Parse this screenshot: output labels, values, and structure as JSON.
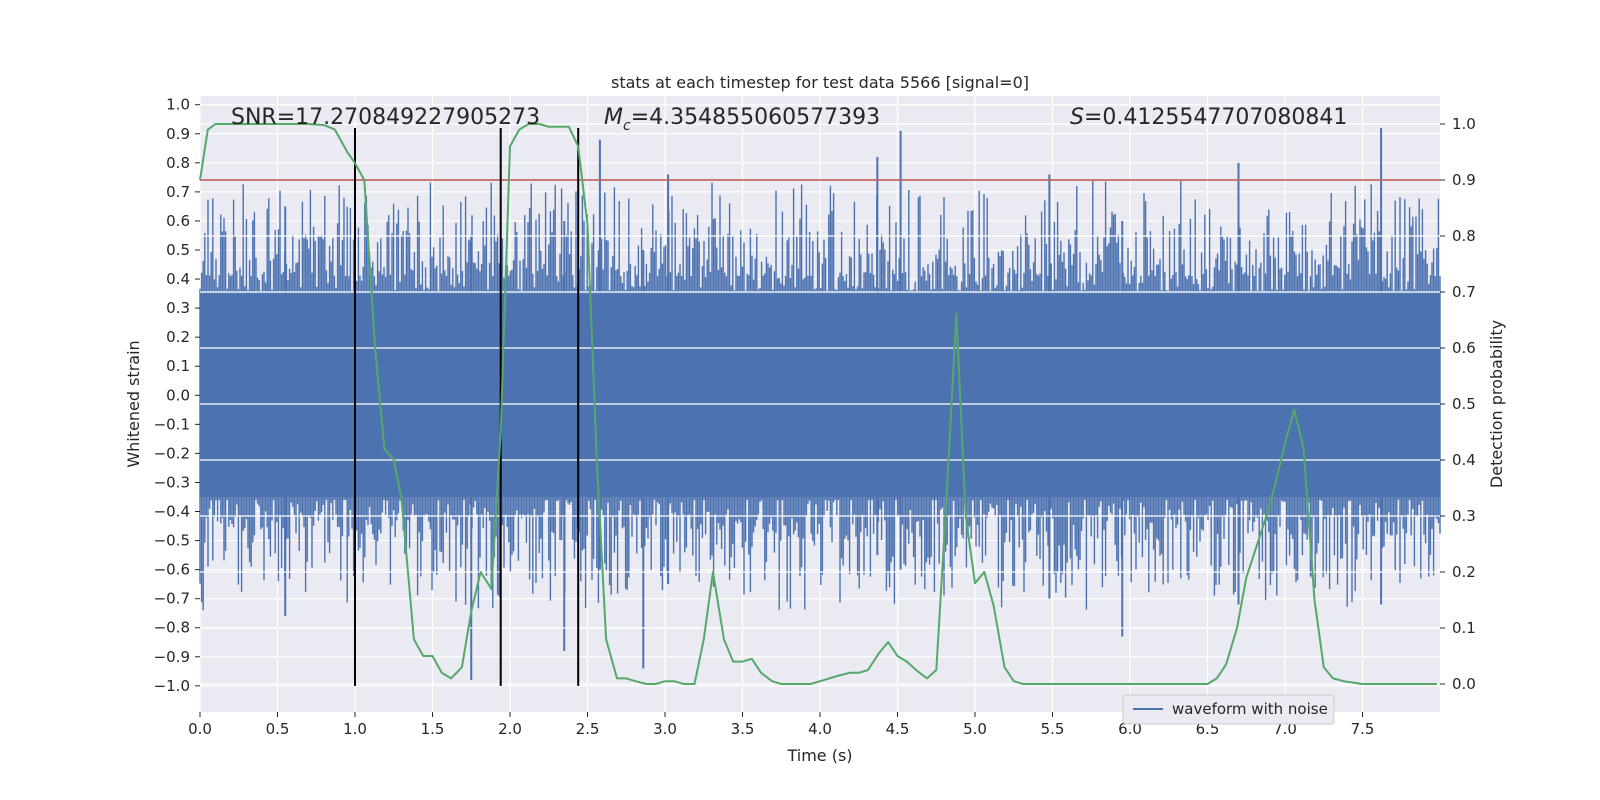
{
  "chart_data": {
    "type": "line",
    "title": "stats at each timestep for test data 5566 [signal=0]",
    "xlabel": "Time (s)",
    "ylabel_left": "Whitened strain",
    "ylabel_right": "Detection probability",
    "xlim": [
      0.0,
      8.0
    ],
    "ylim_left": [
      -1.09,
      1.03
    ],
    "ylim_right": [
      -0.05,
      1.05
    ],
    "x_ticks": [
      "0.0",
      "0.5",
      "1.0",
      "1.5",
      "2.0",
      "2.5",
      "3.0",
      "3.5",
      "4.0",
      "4.5",
      "5.0",
      "5.5",
      "6.0",
      "6.5",
      "7.0",
      "7.5"
    ],
    "y_left_ticks": [
      "1.0",
      "0.9",
      "0.8",
      "0.7",
      "0.6",
      "0.5",
      "0.4",
      "0.3",
      "0.2",
      "0.1",
      "0.0",
      "−0.1",
      "−0.2",
      "−0.3",
      "−0.4",
      "−0.5",
      "−0.6",
      "−0.7",
      "−0.8",
      "−0.9",
      "−1.0"
    ],
    "y_right_ticks": [
      "1.0",
      "0.9",
      "0.8",
      "0.7",
      "0.6",
      "0.5",
      "0.4",
      "0.3",
      "0.2",
      "0.1",
      "0.0"
    ],
    "annotations": {
      "snr_prefix": "SNR=",
      "snr": "17.270849227905273",
      "mc_symbol": "M",
      "mc_subscript": "c",
      "mc_value": "=4.354855060577393",
      "s_symbol": "S",
      "s_value": "=0.4125547707080841"
    },
    "threshold": {
      "axis": "right",
      "value": 0.9,
      "color": "#c44e52"
    },
    "vertical_markers": {
      "x": [
        1.0,
        1.94,
        2.44
      ],
      "y_range": [
        -1.0,
        0.92
      ],
      "color": "#000000"
    },
    "series": [
      {
        "name": "waveform with noise",
        "axis": "left",
        "color": "#4c72b0",
        "description": "dense noisy whitened strain, approx +/-0.35 core with spikes",
        "peaks": [
          {
            "x": 2.58,
            "top": 0.88,
            "bottom": -0.6
          },
          {
            "x": 3.02,
            "top": 0.76,
            "bottom": -0.65
          },
          {
            "x": 4.52,
            "top": 0.91,
            "bottom": -0.6
          },
          {
            "x": 4.37,
            "top": 0.82,
            "bottom": -0.55
          },
          {
            "x": 5.48,
            "top": 0.76,
            "bottom": -0.7
          },
          {
            "x": 6.7,
            "top": 0.8,
            "bottom": -0.72
          },
          {
            "x": 7.62,
            "top": 0.92,
            "bottom": -0.72
          },
          {
            "x": 1.75,
            "top": 0.55,
            "bottom": -0.98
          },
          {
            "x": 2.35,
            "top": 0.6,
            "bottom": -0.88
          },
          {
            "x": 2.86,
            "top": 0.5,
            "bottom": -0.94
          },
          {
            "x": 5.95,
            "top": 0.6,
            "bottom": -0.83
          },
          {
            "x": 0.55,
            "top": 0.65,
            "bottom": -0.76
          }
        ]
      },
      {
        "name": "detection probability",
        "axis": "right",
        "color": "#55a868",
        "x": [
          0.0,
          0.05,
          0.1,
          0.2,
          0.3,
          0.4,
          0.5,
          0.6,
          0.7,
          0.8,
          0.87,
          0.95,
          1.0,
          1.06,
          1.13,
          1.19,
          1.25,
          1.3,
          1.38,
          1.44,
          1.5,
          1.56,
          1.62,
          1.69,
          1.75,
          1.81,
          1.88,
          1.94,
          2.0,
          2.06,
          2.12,
          2.19,
          2.25,
          2.31,
          2.38,
          2.44,
          2.5,
          2.56,
          2.62,
          2.69,
          2.75,
          2.81,
          2.88,
          2.94,
          3.0,
          3.06,
          3.12,
          3.19,
          3.25,
          3.31,
          3.38,
          3.44,
          3.5,
          3.56,
          3.62,
          3.69,
          3.75,
          3.81,
          3.88,
          3.94,
          4.0,
          4.06,
          4.12,
          4.19,
          4.25,
          4.31,
          4.38,
          4.44,
          4.5,
          4.56,
          4.62,
          4.69,
          4.75,
          4.81,
          4.88,
          4.94,
          5.0,
          5.06,
          5.12,
          5.19,
          5.25,
          5.31,
          5.38,
          5.44,
          5.5,
          5.75,
          6.0,
          6.25,
          6.5,
          6.56,
          6.62,
          6.69,
          6.75,
          6.81,
          6.88,
          6.94,
          7.0,
          7.06,
          7.12,
          7.19,
          7.25,
          7.31,
          7.38,
          7.5,
          7.75,
          7.98
        ],
        "values": [
          0.9,
          0.99,
          1.0,
          1.0,
          1.0,
          1.0,
          1.0,
          1.0,
          1.0,
          0.998,
          0.99,
          0.95,
          0.93,
          0.9,
          0.6,
          0.42,
          0.4,
          0.33,
          0.08,
          0.05,
          0.05,
          0.02,
          0.01,
          0.03,
          0.13,
          0.2,
          0.17,
          0.45,
          0.96,
          0.99,
          1.0,
          1.0,
          0.995,
          0.995,
          0.995,
          0.96,
          0.82,
          0.4,
          0.08,
          0.01,
          0.01,
          0.005,
          0.0,
          0.0,
          0.005,
          0.005,
          0.0,
          0.0,
          0.08,
          0.2,
          0.08,
          0.04,
          0.04,
          0.045,
          0.02,
          0.005,
          0.0,
          0.0,
          0.0,
          0.0,
          0.005,
          0.01,
          0.015,
          0.02,
          0.02,
          0.025,
          0.055,
          0.075,
          0.05,
          0.04,
          0.025,
          0.01,
          0.025,
          0.3,
          0.66,
          0.3,
          0.18,
          0.2,
          0.14,
          0.03,
          0.005,
          0.0,
          0.0,
          0.0,
          0.0,
          0.0,
          0.0,
          0.0,
          0.0,
          0.01,
          0.035,
          0.1,
          0.19,
          0.24,
          0.3,
          0.36,
          0.43,
          0.49,
          0.42,
          0.15,
          0.03,
          0.01,
          0.005,
          0.0,
          0.0,
          0.0
        ]
      }
    ],
    "legend": {
      "placement": "lower-right",
      "entries": [
        "waveform with noise"
      ]
    }
  }
}
